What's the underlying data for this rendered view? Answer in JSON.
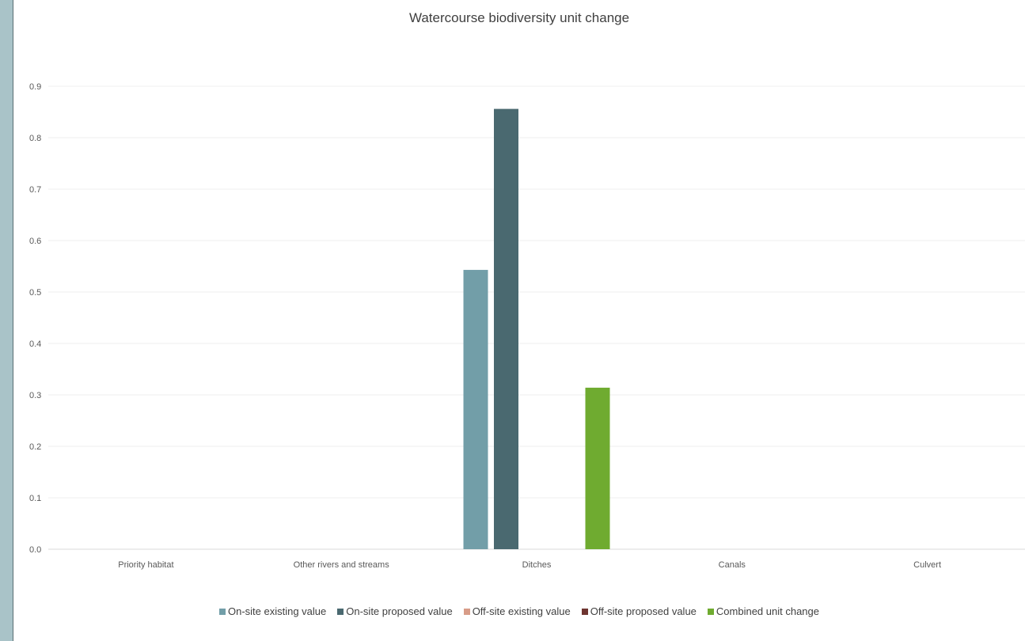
{
  "chart_data": {
    "type": "bar",
    "title": "Watercourse biodiversity unit change",
    "xlabel": "",
    "ylabel": "",
    "categories": [
      "Priority habitat",
      "Other rivers and streams",
      "Ditches",
      "Canals",
      "Culvert"
    ],
    "ylim": [
      0,
      0.9
    ],
    "yticks": [
      "0.0",
      "0.1",
      "0.2",
      "0.3",
      "0.4",
      "0.5",
      "0.6",
      "0.7",
      "0.8",
      "0.9"
    ],
    "grid": true,
    "legend_position": "bottom",
    "series": [
      {
        "name": "On-site existing value",
        "color": "#729ea8",
        "values": [
          0,
          0,
          0.543,
          0,
          0
        ]
      },
      {
        "name": "On-site proposed value",
        "color": "#4a6970",
        "values": [
          0,
          0,
          0.856,
          0,
          0
        ]
      },
      {
        "name": "Off-site existing value",
        "color": "#d89c88",
        "values": [
          0,
          0,
          0,
          0,
          0
        ]
      },
      {
        "name": "Off-site proposed value",
        "color": "#6e3530",
        "values": [
          0,
          0,
          0,
          0,
          0
        ]
      },
      {
        "name": "Combined unit change",
        "color": "#6fab30",
        "values": [
          0,
          0,
          0.314,
          0,
          0
        ]
      }
    ]
  }
}
